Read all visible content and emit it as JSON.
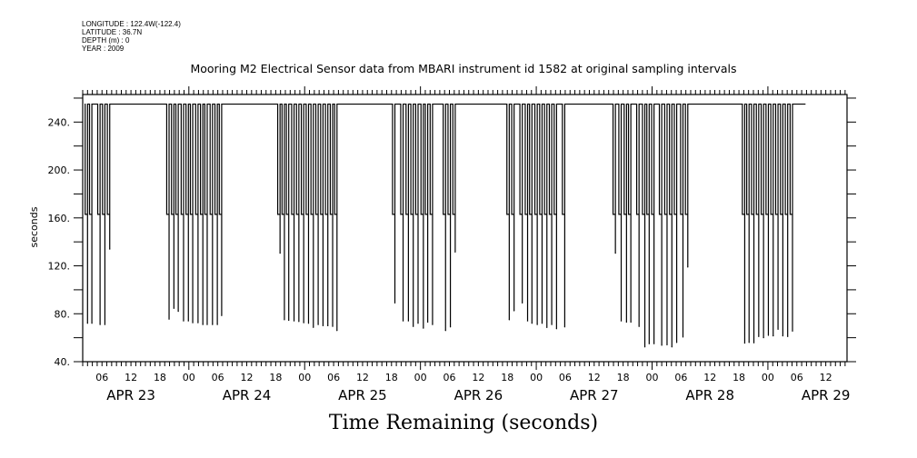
{
  "header": {
    "longitude": "LONGITUDE : 122.4W(-122.4)",
    "latitude": "LATITUDE : 36.7N",
    "depth": "DEPTH (m) : 0",
    "year": "YEAR : 2009"
  },
  "chart_data": {
    "type": "line",
    "title": "Mooring M2 Electrical Sensor data from MBARI instrument id 1582 at original sampling intervals",
    "xlabel": "Time Remaining (seconds)",
    "ylabel": "seconds",
    "x_units": "hours since APR 23 00:00 (2009)",
    "xlim": [
      2,
      160.4
    ],
    "ylim": [
      40,
      263
    ],
    "grid": false,
    "line_color": "#000000",
    "baseline_value": 255,
    "intermediate_level": 163,
    "series_start": 2.6,
    "series_end": 151.8,
    "yticks": [
      40,
      80,
      120,
      160,
      200,
      240
    ],
    "ytick_labels": [
      "40.",
      "80.",
      "120.",
      "160.",
      "200.",
      "240."
    ],
    "yminor_step": 20,
    "xtick_hours": [
      6,
      12,
      18,
      24,
      30,
      36,
      42,
      48,
      54,
      60,
      66,
      72,
      78,
      84,
      90,
      96,
      102,
      108,
      114,
      120,
      126,
      132,
      138,
      144,
      150,
      156
    ],
    "xtick_labels": [
      "06",
      "12",
      "18",
      "00",
      "06",
      "12",
      "18",
      "00",
      "06",
      "12",
      "18",
      "00",
      "06",
      "12",
      "18",
      "00",
      "06",
      "12",
      "18",
      "00",
      "06",
      "12",
      "18",
      "00",
      "06",
      "12"
    ],
    "date_labels": [
      {
        "label": "APR 23",
        "hour": 12
      },
      {
        "label": "APR 24",
        "hour": 36
      },
      {
        "label": "APR 25",
        "hour": 60
      },
      {
        "label": "APR 26",
        "hour": 84
      },
      {
        "label": "APR 27",
        "hour": 108
      },
      {
        "label": "APR 28",
        "hour": 132
      },
      {
        "label": "APR 29",
        "hour": 156
      }
    ],
    "dips": [
      [
        3.0,
        72
      ],
      [
        3.9,
        72
      ],
      [
        5.6,
        71
      ],
      [
        6.6,
        71
      ],
      [
        7.6,
        134
      ],
      [
        19.9,
        75.5
      ],
      [
        20.9,
        84.5
      ],
      [
        21.8,
        82
      ],
      [
        22.9,
        74
      ],
      [
        23.9,
        74
      ],
      [
        24.8,
        72.5
      ],
      [
        25.9,
        72.5
      ],
      [
        26.9,
        71
      ],
      [
        27.8,
        71
      ],
      [
        28.9,
        71
      ],
      [
        29.9,
        71
      ],
      [
        30.8,
        78.5
      ],
      [
        42.9,
        130.5
      ],
      [
        43.8,
        75
      ],
      [
        44.7,
        74.5
      ],
      [
        45.8,
        74
      ],
      [
        46.8,
        73.5
      ],
      [
        47.8,
        72.5
      ],
      [
        48.8,
        72
      ],
      [
        49.8,
        68.6
      ],
      [
        50.8,
        71
      ],
      [
        51.8,
        70
      ],
      [
        52.8,
        70
      ],
      [
        53.8,
        69.5
      ],
      [
        54.7,
        66
      ],
      [
        66.7,
        89
      ],
      [
        68.4,
        74
      ],
      [
        69.5,
        74
      ],
      [
        70.5,
        69.4
      ],
      [
        71.5,
        72
      ],
      [
        72.6,
        68
      ],
      [
        73.5,
        73
      ],
      [
        74.5,
        71
      ],
      [
        77.2,
        66
      ],
      [
        78.2,
        69
      ],
      [
        79.2,
        131.5
      ],
      [
        90.4,
        75
      ],
      [
        91.4,
        82.5
      ],
      [
        93.1,
        89
      ],
      [
        94.2,
        74
      ],
      [
        95.1,
        72
      ],
      [
        96.2,
        71
      ],
      [
        97.2,
        72
      ],
      [
        98.2,
        68.5
      ],
      [
        99.2,
        71
      ],
      [
        100.2,
        67.5
      ],
      [
        101.9,
        69
      ],
      [
        112.4,
        130.5
      ],
      [
        113.6,
        74
      ],
      [
        114.7,
        73
      ],
      [
        115.6,
        73
      ],
      [
        117.3,
        69.4
      ],
      [
        118.5,
        52.3
      ],
      [
        119.4,
        55
      ],
      [
        120.4,
        55
      ],
      [
        122.0,
        53.7
      ],
      [
        123.1,
        54
      ],
      [
        124.1,
        52.3
      ],
      [
        125.1,
        56
      ],
      [
        126.4,
        60.6
      ],
      [
        127.4,
        119
      ],
      [
        139.2,
        55.5
      ],
      [
        140.1,
        56
      ],
      [
        141.1,
        55.7
      ],
      [
        142.1,
        61
      ],
      [
        143.1,
        60
      ],
      [
        144.1,
        62
      ],
      [
        145.1,
        61.5
      ],
      [
        146.1,
        67
      ],
      [
        147.1,
        61.5
      ],
      [
        148.1,
        61
      ],
      [
        149.1,
        65.5
      ]
    ]
  }
}
